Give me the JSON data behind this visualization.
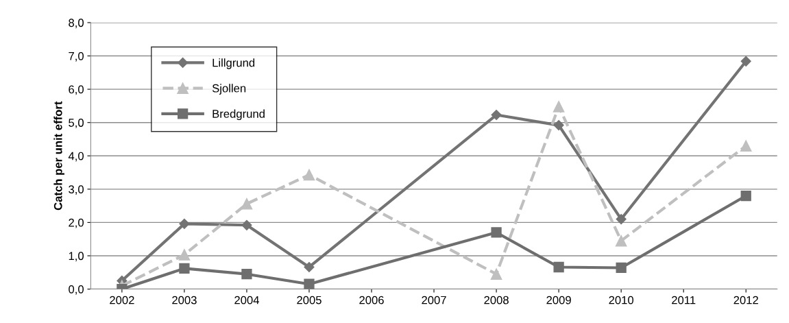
{
  "chart_data": {
    "type": "line",
    "ylabel": "Catch per unit effort",
    "categories": [
      "2002",
      "2003",
      "2004",
      "2005",
      "2006",
      "2007",
      "2008",
      "2009",
      "2010",
      "2011",
      "2012"
    ],
    "series": [
      {
        "name": "Lillgrund",
        "color": "#737373",
        "marker": "diamond",
        "line_style": "solid",
        "values": [
          0.25,
          1.96,
          1.92,
          0.66,
          null,
          null,
          5.23,
          4.92,
          2.1,
          null,
          6.84
        ]
      },
      {
        "name": "Sjollen",
        "color": "#bfbfbf",
        "marker": "triangle",
        "line_style": "dashed",
        "values": [
          0.1,
          1.03,
          2.56,
          3.43,
          null,
          null,
          0.45,
          5.48,
          1.45,
          null,
          4.3
        ]
      },
      {
        "name": "Bredgrund",
        "color": "#6e6e6e",
        "marker": "square",
        "line_style": "solid",
        "values": [
          0.0,
          0.62,
          0.45,
          0.15,
          null,
          null,
          1.7,
          0.66,
          0.64,
          null,
          2.8
        ]
      }
    ],
    "ylim": [
      0,
      8
    ],
    "yticks": [
      {
        "value": 0,
        "label": "0,0"
      },
      {
        "value": 1,
        "label": "1,0"
      },
      {
        "value": 2,
        "label": "2,0"
      },
      {
        "value": 3,
        "label": "3,0"
      },
      {
        "value": 4,
        "label": "4,0"
      },
      {
        "value": 5,
        "label": "5,0"
      },
      {
        "value": 6,
        "label": "6,0"
      },
      {
        "value": 7,
        "label": "7,0"
      },
      {
        "value": 8,
        "label": "8,0"
      }
    ],
    "grid": "y",
    "legend": "top left"
  }
}
